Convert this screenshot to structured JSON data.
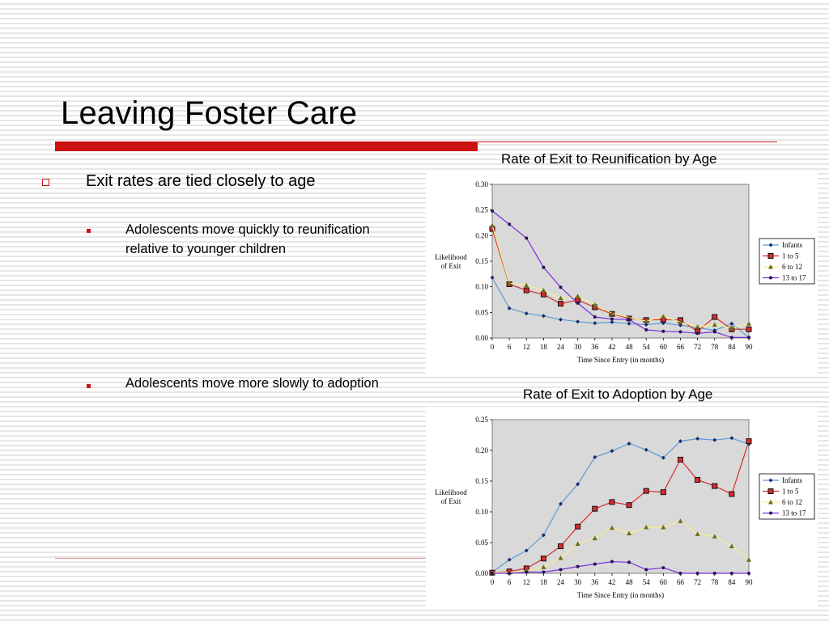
{
  "slide": {
    "title": "Leaving Foster Care",
    "bullets": [
      {
        "text": "Exit rates are tied closely to age"
      },
      {
        "text": "Adolescents move quickly to reunification relative to younger children"
      },
      {
        "text": "Adolescents move more slowly to adoption"
      }
    ]
  },
  "chart_data": [
    {
      "type": "line",
      "title": "Rate of Exit to Reunification by Age",
      "xlabel": "Time Since Entry (in months)",
      "ylabel": "Likelihood of Exit",
      "x": [
        0,
        6,
        12,
        18,
        24,
        30,
        36,
        42,
        48,
        54,
        60,
        66,
        72,
        78,
        84,
        90
      ],
      "ylim": [
        0,
        0.3
      ],
      "yticks": [
        "0.00",
        "0.05",
        "0.10",
        "0.15",
        "0.20",
        "0.25",
        "0.30"
      ],
      "legend_position": "right",
      "grid": false,
      "series": [
        {
          "name": "Infants",
          "color": "#5b9bd5",
          "marker": "diamond",
          "values": [
            0.118,
            0.058,
            0.048,
            0.043,
            0.036,
            0.032,
            0.029,
            0.031,
            0.028,
            0.026,
            0.029,
            0.025,
            0.02,
            0.015,
            0.028,
            0.001
          ]
        },
        {
          "name": "1 to 5",
          "color": "#d92b2b",
          "marker": "square",
          "values": [
            0.213,
            0.105,
            0.093,
            0.085,
            0.067,
            0.074,
            0.06,
            0.047,
            0.038,
            0.035,
            0.036,
            0.035,
            0.013,
            0.041,
            0.017,
            0.017
          ]
        },
        {
          "name": "6 to 12",
          "color": "#f5ee8c",
          "marker": "triangle",
          "values": [
            0.22,
            0.107,
            0.103,
            0.093,
            0.078,
            0.082,
            0.065,
            0.048,
            0.04,
            0.033,
            0.042,
            0.031,
            0.022,
            0.026,
            0.02,
            0.028
          ]
        },
        {
          "name": "13 to 17",
          "color": "#7b2fe0",
          "marker": "circle",
          "values": [
            0.248,
            0.222,
            0.195,
            0.138,
            0.099,
            0.068,
            0.041,
            0.037,
            0.036,
            0.016,
            0.013,
            0.012,
            0.009,
            0.012,
            0.001,
            0.001
          ]
        }
      ]
    },
    {
      "type": "line",
      "title": "Rate of Exit to Adoption by Age",
      "xlabel": "Time Since Entry (in months)",
      "ylabel": "Likelihood of Exit",
      "x": [
        0,
        6,
        12,
        18,
        24,
        30,
        36,
        42,
        48,
        54,
        60,
        66,
        72,
        78,
        84,
        90
      ],
      "ylim": [
        0,
        0.25
      ],
      "yticks": [
        "0.00",
        "0.05",
        "0.10",
        "0.15",
        "0.20",
        "0.25"
      ],
      "legend_position": "right",
      "grid": false,
      "series": [
        {
          "name": "Infants",
          "color": "#5b9bd5",
          "marker": "diamond",
          "values": [
            0.002,
            0.022,
            0.037,
            0.062,
            0.113,
            0.145,
            0.189,
            0.199,
            0.211,
            0.201,
            0.188,
            0.215,
            0.219,
            0.217,
            0.22,
            0.21
          ]
        },
        {
          "name": "1 to 5",
          "color": "#d92b2b",
          "marker": "square",
          "values": [
            0.001,
            0.003,
            0.008,
            0.024,
            0.044,
            0.076,
            0.105,
            0.116,
            0.111,
            0.134,
            0.132,
            0.185,
            0.152,
            0.142,
            0.129,
            0.215
          ]
        },
        {
          "name": "6 to 12",
          "color": "#f5ee8c",
          "marker": "triangle",
          "values": [
            0.001,
            0.002,
            0.004,
            0.01,
            0.025,
            0.048,
            0.057,
            0.074,
            0.065,
            0.075,
            0.075,
            0.085,
            0.064,
            0.06,
            0.044,
            0.022
          ]
        },
        {
          "name": "13 to 17",
          "color": "#7b2fe0",
          "marker": "circle",
          "values": [
            0.0,
            0.0,
            0.002,
            0.002,
            0.006,
            0.011,
            0.015,
            0.019,
            0.018,
            0.006,
            0.009,
            0.0,
            0.0,
            0.0,
            0.0,
            0.0
          ]
        }
      ]
    }
  ]
}
